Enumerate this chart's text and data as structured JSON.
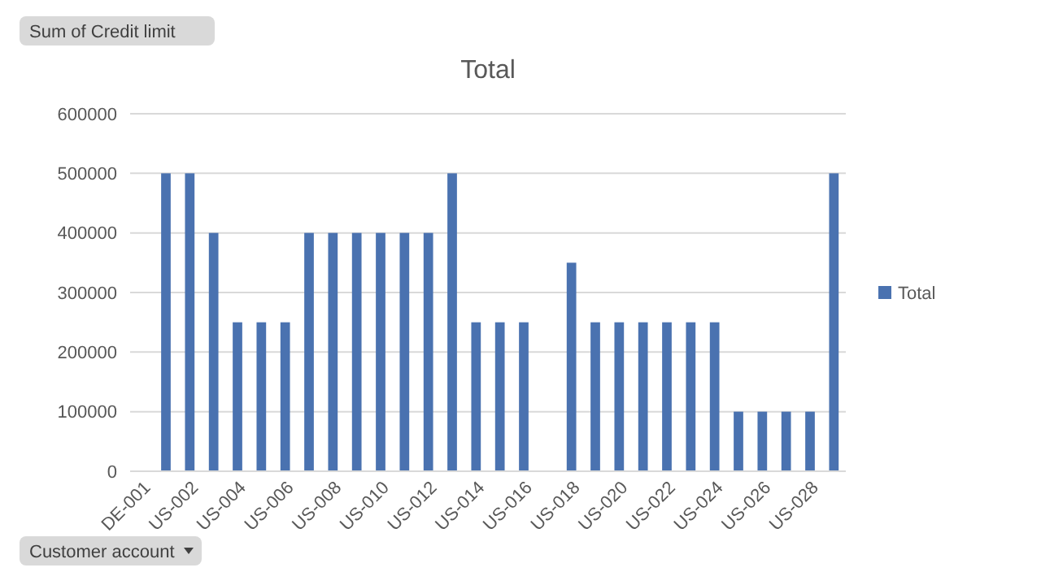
{
  "chart_data": {
    "type": "bar",
    "title": "Total",
    "categories": [
      "DE-001",
      null,
      "US-002",
      null,
      "US-004",
      null,
      "US-006",
      null,
      "US-008",
      null,
      "US-010",
      null,
      "US-012",
      null,
      "US-014",
      null,
      "US-016",
      null,
      "US-018",
      null,
      "US-020",
      null,
      "US-022",
      null,
      "US-024",
      null,
      "US-026",
      null,
      "US-028",
      null
    ],
    "series": [
      {
        "name": "Total",
        "color": "#4a72b0",
        "values": [
          null,
          500000,
          500000,
          400000,
          250000,
          250000,
          250000,
          400000,
          400000,
          400000,
          400000,
          400000,
          400000,
          500000,
          250000,
          250000,
          250000,
          null,
          350000,
          250000,
          250000,
          250000,
          250000,
          250000,
          250000,
          100000,
          100000,
          100000,
          100000,
          500000
        ]
      }
    ],
    "ylim": [
      0,
      600000
    ],
    "yticks": [
      0,
      100000,
      200000,
      300000,
      400000,
      500000,
      600000
    ],
    "grid": "y",
    "legend": "right",
    "annotations": [
      "Sum of Credit limit",
      "Customer account"
    ]
  }
}
